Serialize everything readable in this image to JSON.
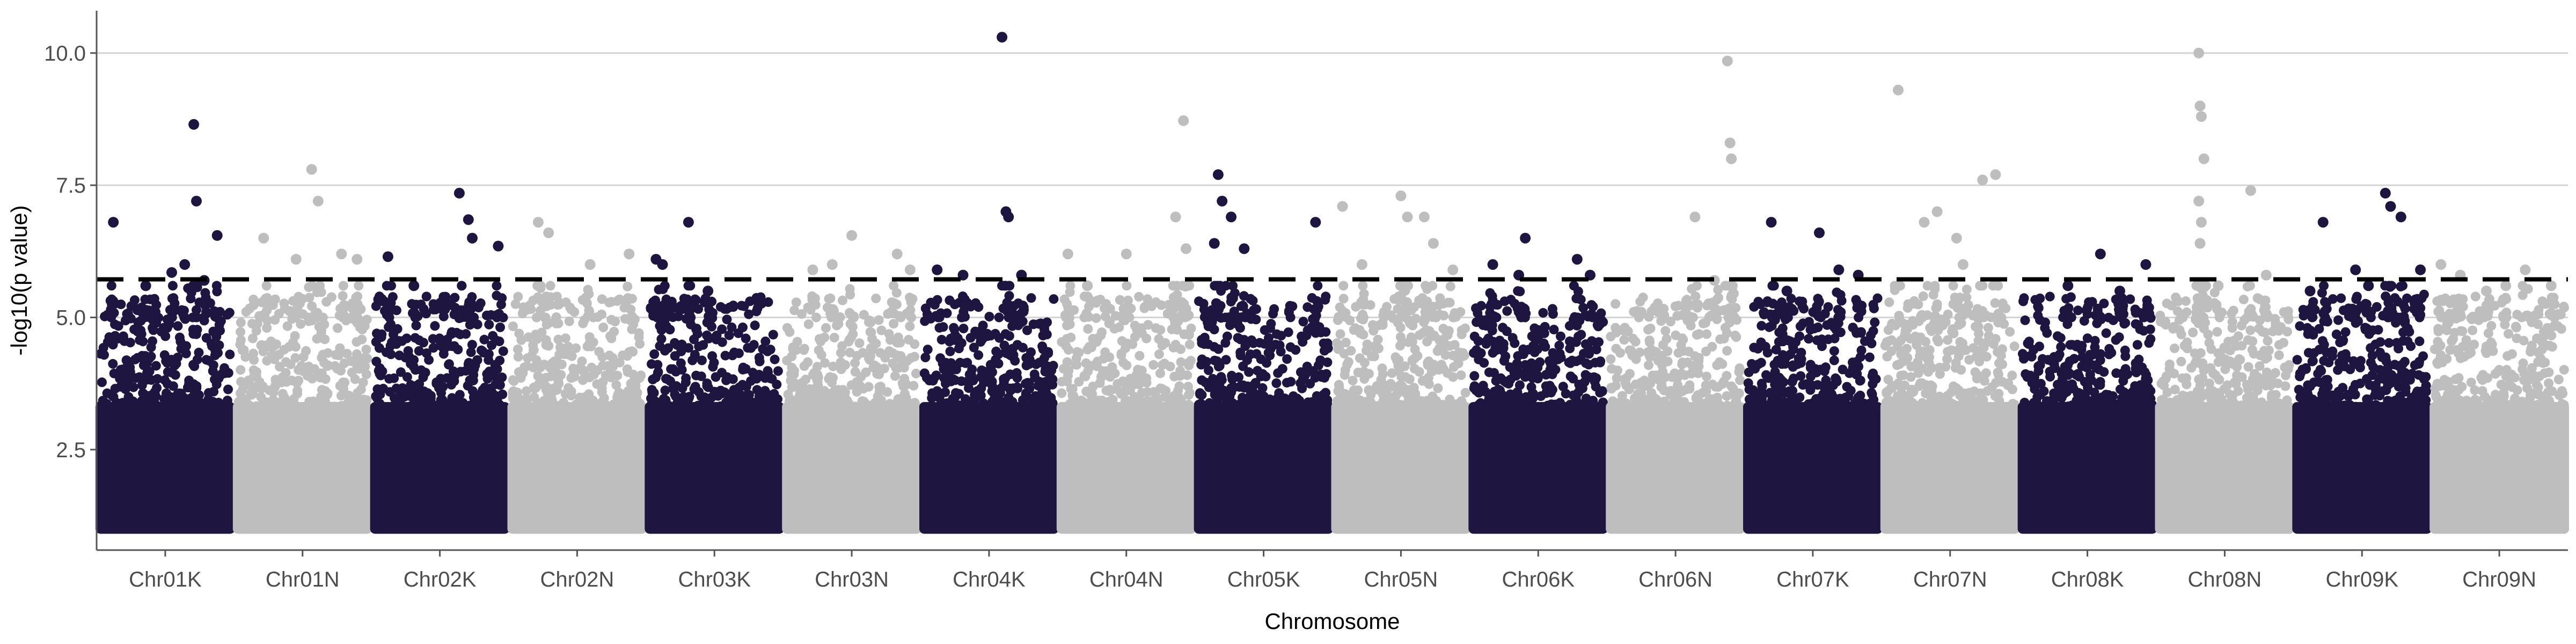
{
  "chart_data": {
    "type": "scatter",
    "title": "",
    "xlabel": "Chromosome",
    "ylabel": "-log10(p value)",
    "ylim": [
      0.6,
      10.8
    ],
    "yticks": [
      2.5,
      5.0,
      7.5,
      10.0
    ],
    "ytick_labels": [
      "2.5",
      "5.0",
      "7.5",
      "10.0"
    ],
    "threshold": 5.72,
    "grid": "horizontal major lines",
    "legend": "none",
    "colors": {
      "dark": "#1e1540",
      "light": "#bebebe",
      "threshold": "#000000",
      "grid": "#d4d4d4",
      "axis": "#555555"
    },
    "categories": [
      "Chr01K",
      "Chr01N",
      "Chr02K",
      "Chr02N",
      "Chr03K",
      "Chr03N",
      "Chr04K",
      "Chr04N",
      "Chr05K",
      "Chr05N",
      "Chr06K",
      "Chr06N",
      "Chr07K",
      "Chr07N",
      "Chr08K",
      "Chr08N",
      "Chr09K",
      "Chr09N"
    ],
    "peaks": [
      [
        {
          "x": 0.1,
          "y": 6.8
        },
        {
          "x": 0.35,
          "y": 5.6
        },
        {
          "x": 0.65,
          "y": 6.0
        },
        {
          "x": 0.72,
          "y": 8.65
        },
        {
          "x": 0.74,
          "y": 7.2
        },
        {
          "x": 0.9,
          "y": 6.55
        },
        {
          "x": 0.55,
          "y": 5.85
        },
        {
          "x": 0.8,
          "y": 5.7
        }
      ],
      [
        {
          "x": 0.2,
          "y": 6.5
        },
        {
          "x": 0.45,
          "y": 6.1
        },
        {
          "x": 0.57,
          "y": 7.8
        },
        {
          "x": 0.62,
          "y": 7.2
        },
        {
          "x": 0.8,
          "y": 6.2
        },
        {
          "x": 0.92,
          "y": 6.1
        }
      ],
      [
        {
          "x": 0.1,
          "y": 6.15
        },
        {
          "x": 0.3,
          "y": 5.6
        },
        {
          "x": 0.65,
          "y": 7.35
        },
        {
          "x": 0.72,
          "y": 6.85
        },
        {
          "x": 0.75,
          "y": 6.5
        },
        {
          "x": 0.95,
          "y": 6.35
        }
      ],
      [
        {
          "x": 0.2,
          "y": 6.8
        },
        {
          "x": 0.28,
          "y": 6.6
        },
        {
          "x": 0.6,
          "y": 6.0
        },
        {
          "x": 0.9,
          "y": 6.2
        }
      ],
      [
        {
          "x": 0.05,
          "y": 6.1
        },
        {
          "x": 0.1,
          "y": 6.0
        },
        {
          "x": 0.3,
          "y": 6.8
        },
        {
          "x": 0.45,
          "y": 5.5
        }
      ],
      [
        {
          "x": 0.2,
          "y": 5.9
        },
        {
          "x": 0.35,
          "y": 6.0
        },
        {
          "x": 0.5,
          "y": 6.55
        },
        {
          "x": 0.85,
          "y": 6.2
        },
        {
          "x": 0.95,
          "y": 5.9
        }
      ],
      [
        {
          "x": 0.1,
          "y": 5.9
        },
        {
          "x": 0.3,
          "y": 5.8
        },
        {
          "x": 0.6,
          "y": 10.3
        },
        {
          "x": 0.63,
          "y": 7.0
        },
        {
          "x": 0.65,
          "y": 6.9
        },
        {
          "x": 0.75,
          "y": 5.8
        }
      ],
      [
        {
          "x": 0.05,
          "y": 6.2
        },
        {
          "x": 0.2,
          "y": 5.6
        },
        {
          "x": 0.5,
          "y": 6.2
        },
        {
          "x": 0.88,
          "y": 6.9
        },
        {
          "x": 0.94,
          "y": 8.72
        },
        {
          "x": 0.96,
          "y": 6.3
        }
      ],
      [
        {
          "x": 0.12,
          "y": 6.4
        },
        {
          "x": 0.15,
          "y": 7.7
        },
        {
          "x": 0.18,
          "y": 7.2
        },
        {
          "x": 0.25,
          "y": 6.9
        },
        {
          "x": 0.35,
          "y": 6.3
        },
        {
          "x": 0.9,
          "y": 6.8
        }
      ],
      [
        {
          "x": 0.05,
          "y": 7.1
        },
        {
          "x": 0.2,
          "y": 6.0
        },
        {
          "x": 0.5,
          "y": 7.3
        },
        {
          "x": 0.55,
          "y": 6.9
        },
        {
          "x": 0.68,
          "y": 6.9
        },
        {
          "x": 0.75,
          "y": 6.4
        },
        {
          "x": 0.9,
          "y": 5.9
        }
      ],
      [
        {
          "x": 0.15,
          "y": 6.0
        },
        {
          "x": 0.35,
          "y": 5.8
        },
        {
          "x": 0.4,
          "y": 6.5
        },
        {
          "x": 0.8,
          "y": 6.1
        },
        {
          "x": 0.9,
          "y": 5.8
        }
      ],
      [
        {
          "x": 0.65,
          "y": 6.9
        },
        {
          "x": 0.8,
          "y": 5.7
        },
        {
          "x": 0.9,
          "y": 9.85
        },
        {
          "x": 0.92,
          "y": 8.3
        },
        {
          "x": 0.93,
          "y": 8.0
        }
      ],
      [
        {
          "x": 0.18,
          "y": 6.8
        },
        {
          "x": 0.3,
          "y": 5.5
        },
        {
          "x": 0.55,
          "y": 6.6
        },
        {
          "x": 0.7,
          "y": 5.9
        },
        {
          "x": 0.85,
          "y": 5.8
        }
      ],
      [
        {
          "x": 0.1,
          "y": 9.3
        },
        {
          "x": 0.3,
          "y": 6.8
        },
        {
          "x": 0.4,
          "y": 7.0
        },
        {
          "x": 0.55,
          "y": 6.5
        },
        {
          "x": 0.75,
          "y": 7.6
        },
        {
          "x": 0.85,
          "y": 7.7
        },
        {
          "x": 0.6,
          "y": 6.0
        }
      ],
      [
        {
          "x": 0.35,
          "y": 5.6
        },
        {
          "x": 0.6,
          "y": 6.2
        },
        {
          "x": 0.75,
          "y": 5.5
        },
        {
          "x": 0.95,
          "y": 6.0
        }
      ],
      [
        {
          "x": 0.3,
          "y": 10.0
        },
        {
          "x": 0.31,
          "y": 9.0
        },
        {
          "x": 0.32,
          "y": 8.8
        },
        {
          "x": 0.34,
          "y": 8.0
        },
        {
          "x": 0.3,
          "y": 7.2
        },
        {
          "x": 0.32,
          "y": 6.8
        },
        {
          "x": 0.31,
          "y": 6.4
        },
        {
          "x": 0.45,
          "y": 5.6
        },
        {
          "x": 0.7,
          "y": 7.4
        },
        {
          "x": 0.82,
          "y": 5.8
        }
      ],
      [
        {
          "x": 0.1,
          "y": 5.5
        },
        {
          "x": 0.2,
          "y": 6.8
        },
        {
          "x": 0.45,
          "y": 5.9
        },
        {
          "x": 0.55,
          "y": 5.6
        },
        {
          "x": 0.68,
          "y": 7.35
        },
        {
          "x": 0.72,
          "y": 7.1
        },
        {
          "x": 0.8,
          "y": 6.9
        },
        {
          "x": 0.95,
          "y": 5.9
        }
      ],
      [
        {
          "x": 0.05,
          "y": 6.0
        },
        {
          "x": 0.2,
          "y": 5.8
        },
        {
          "x": 0.4,
          "y": 5.5
        },
        {
          "x": 0.55,
          "y": 5.6
        },
        {
          "x": 0.7,
          "y": 5.9
        },
        {
          "x": 0.9,
          "y": 5.6
        }
      ]
    ]
  }
}
